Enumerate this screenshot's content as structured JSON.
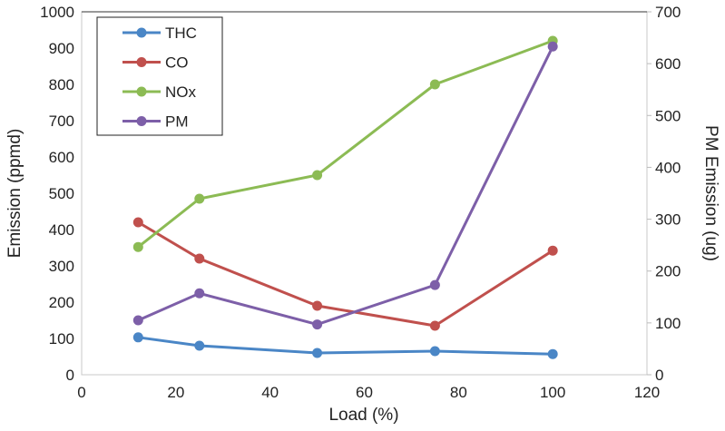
{
  "chart_data": {
    "type": "line",
    "xlabel": "Load (%)",
    "ylabel": "Emission (ppmd)",
    "y2label": "PM Emission (ug)",
    "xlim": [
      0,
      120
    ],
    "ylim": [
      0,
      1000
    ],
    "y2lim": [
      0,
      700
    ],
    "xticks": [
      0,
      20,
      40,
      60,
      80,
      100,
      120
    ],
    "yticks": [
      0,
      100,
      200,
      300,
      400,
      500,
      600,
      700,
      800,
      900,
      1000
    ],
    "y2ticks": [
      0,
      100,
      200,
      300,
      400,
      500,
      600,
      700
    ],
    "grid": false,
    "legend": "top-left",
    "x": [
      12,
      25,
      50,
      75,
      100
    ],
    "series": [
      {
        "name": "THC",
        "axis": "left",
        "color": "#4a86c6",
        "values": [
          103,
          80,
          60,
          65,
          57
        ]
      },
      {
        "name": "CO",
        "axis": "left",
        "color": "#c0504d",
        "values": [
          420,
          320,
          190,
          135,
          342
        ]
      },
      {
        "name": "NOx",
        "axis": "left",
        "color": "#8cbb54",
        "values": [
          352,
          485,
          550,
          800,
          920
        ]
      },
      {
        "name": "PM",
        "axis": "right",
        "color": "#7d5fa8",
        "values": [
          105,
          157,
          97,
          173,
          633
        ]
      }
    ]
  }
}
